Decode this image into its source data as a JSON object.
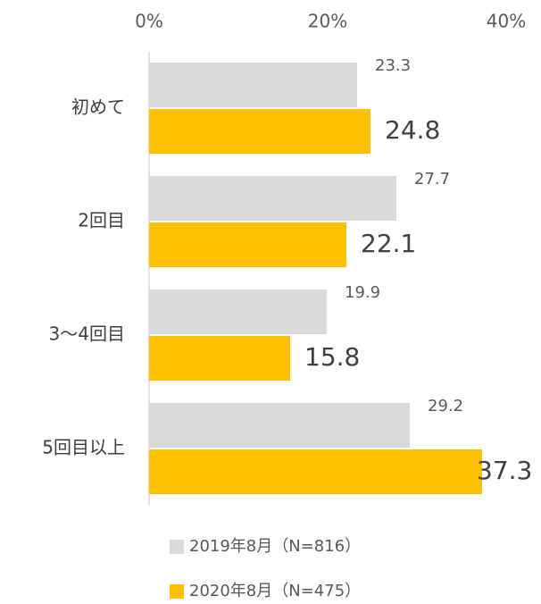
{
  "chart_data": {
    "type": "bar",
    "orientation": "horizontal",
    "categories": [
      "初めて",
      "2回目",
      "3～4回目",
      "5回目以上"
    ],
    "series": [
      {
        "name": "2019年8月（N=816）",
        "color": "#d9d9d9",
        "values": [
          23.3,
          27.7,
          19.9,
          29.2
        ]
      },
      {
        "name": "2020年8月（N=475）",
        "color": "#ffc000",
        "values": [
          24.8,
          22.1,
          15.8,
          37.3
        ]
      }
    ],
    "xlim": [
      0,
      40
    ],
    "xticks": [
      {
        "value": 0,
        "label": "0%"
      },
      {
        "value": 20,
        "label": "20%"
      },
      {
        "value": 40,
        "label": "40%"
      }
    ],
    "grid": false
  }
}
